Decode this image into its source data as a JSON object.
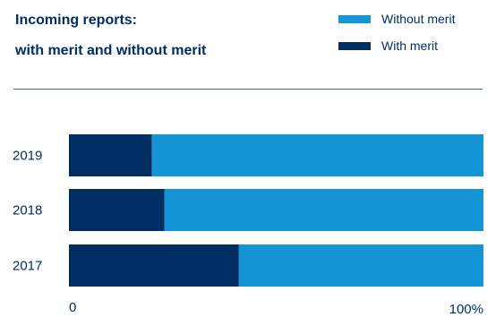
{
  "title_line1": "Incoming reports:",
  "title_line2": "with merit and without merit",
  "colors": {
    "without_merit": "#1595d6",
    "with_merit": "#002e63",
    "divider": "#3f6a94",
    "text": "#002e63"
  },
  "legend": [
    {
      "label": "Without merit",
      "color": "#1595d6"
    },
    {
      "label": "With merit",
      "color": "#002e63"
    }
  ],
  "chart_data": {
    "type": "bar",
    "orientation": "horizontal",
    "stacked": true,
    "normalized_percent": true,
    "categories": [
      "2019",
      "2018",
      "2017"
    ],
    "series": [
      {
        "name": "With merit",
        "values": [
          20,
          23,
          41
        ]
      },
      {
        "name": "Without merit",
        "values": [
          80,
          77,
          59
        ]
      }
    ],
    "xlim": [
      0,
      100
    ],
    "xtick_labels": [
      "0",
      "100%"
    ],
    "grid": false,
    "legend_position": "top-right"
  }
}
